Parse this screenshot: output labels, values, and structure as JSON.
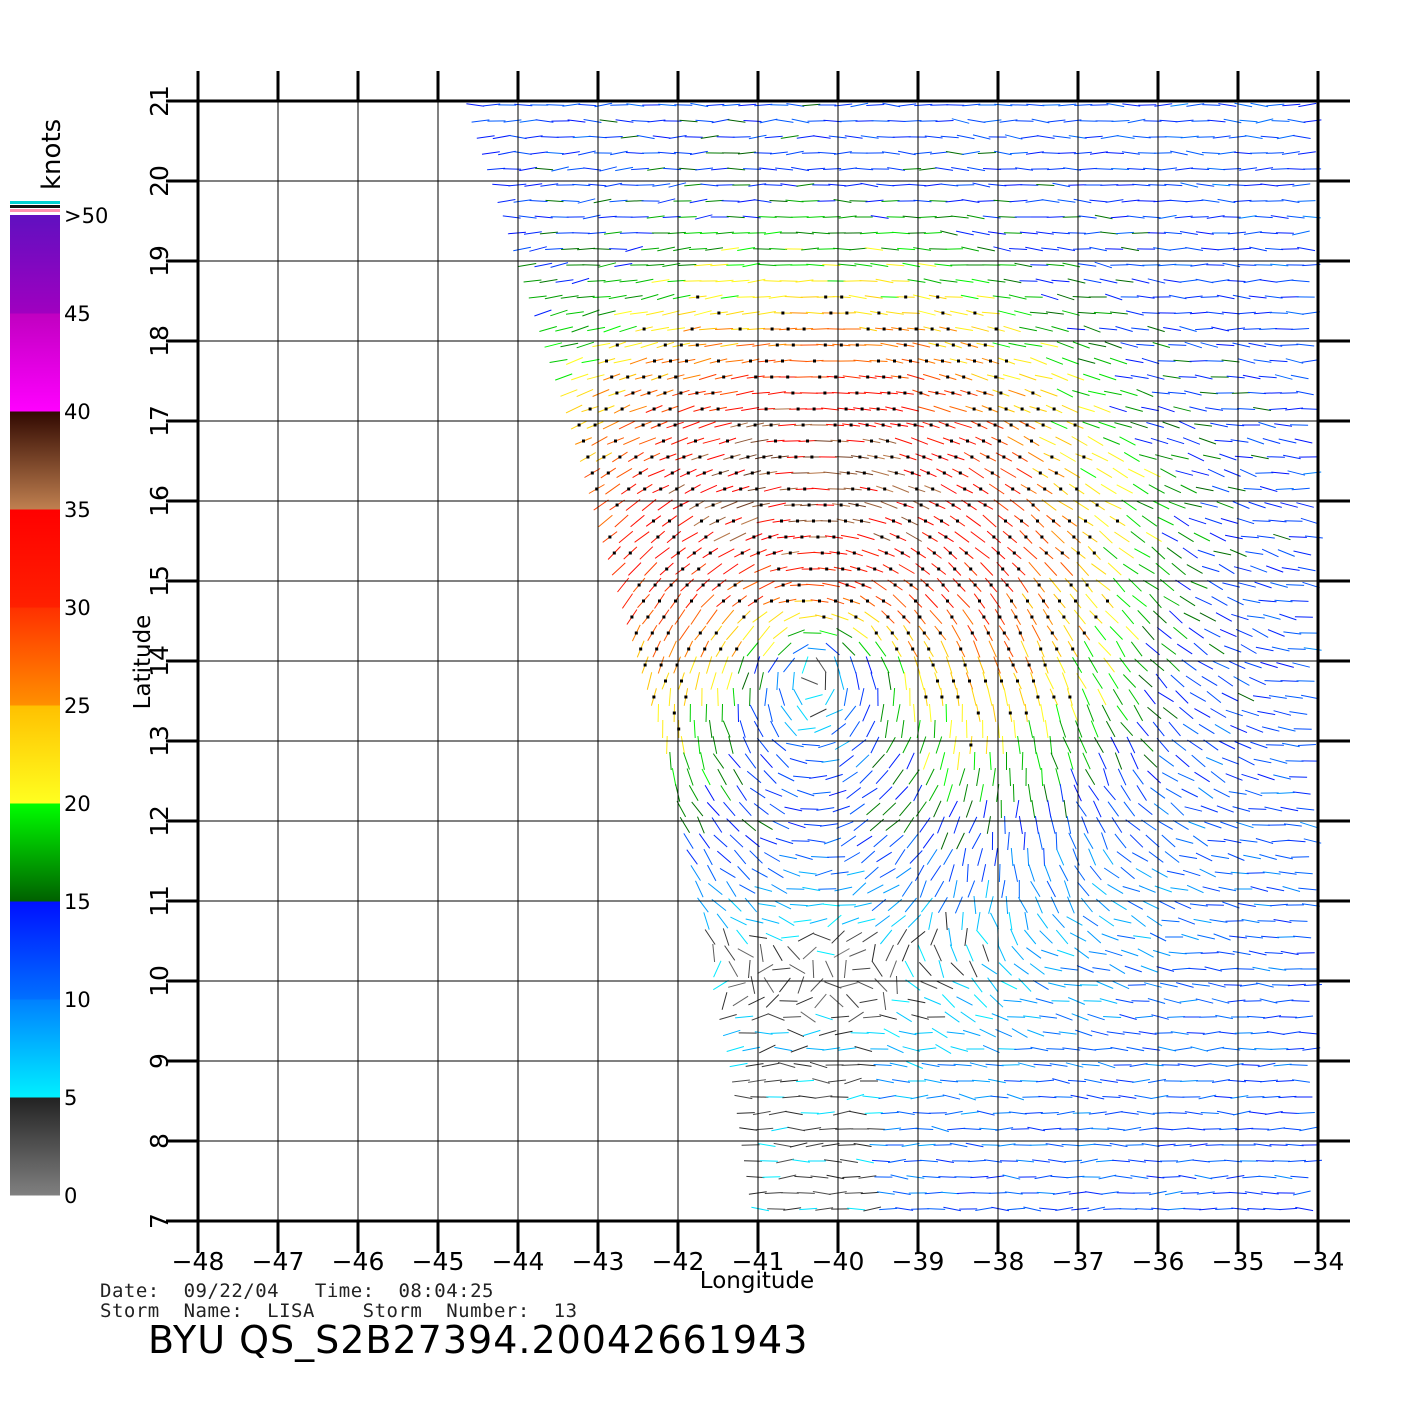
{
  "colorbar": {
    "title": "knots",
    "segments": [
      {
        "from": 0,
        "to": 5,
        "colors": [
          "#808080",
          "#222222"
        ]
      },
      {
        "from": 5,
        "to": 10,
        "colors": [
          "#00f0ff",
          "#0080ff"
        ]
      },
      {
        "from": 10,
        "to": 15,
        "colors": [
          "#0070ff",
          "#0010ff"
        ]
      },
      {
        "from": 15,
        "to": 20,
        "colors": [
          "#006000",
          "#00ff00"
        ]
      },
      {
        "from": 20,
        "to": 25,
        "colors": [
          "#ffff20",
          "#ffc000"
        ]
      },
      {
        "from": 25,
        "to": 30,
        "colors": [
          "#ff9000",
          "#ff3000"
        ]
      },
      {
        "from": 30,
        "to": 35,
        "colors": [
          "#ff2000",
          "#ff0000"
        ]
      },
      {
        "from": 35,
        "to": 40,
        "colors": [
          "#c08050",
          "#300800"
        ]
      },
      {
        "from": 40,
        "to": 45,
        "colors": [
          "#ff00ff",
          "#c000c0"
        ]
      },
      {
        "from": 45,
        "to": 50,
        "colors": [
          "#a000c0",
          "#6010c0"
        ]
      }
    ],
    "tick_labels": [
      {
        "value": 0,
        "label": "0"
      },
      {
        "value": 5,
        "label": "5"
      },
      {
        "value": 10,
        "label": "10"
      },
      {
        "value": 15,
        "label": "15"
      },
      {
        "value": 20,
        "label": "20"
      },
      {
        "value": 25,
        "label": "25"
      },
      {
        "value": 30,
        "label": "30"
      },
      {
        "value": 35,
        "label": "35"
      },
      {
        "value": 40,
        "label": "40"
      },
      {
        "value": 45,
        "label": "45"
      },
      {
        "value": 50,
        "label": ">50"
      }
    ],
    "cap_colors": [
      "#00d0d0",
      "#101010",
      "#ff90b0"
    ]
  },
  "map": {
    "xlabel": "Longitude",
    "ylabel": "Latitude",
    "lon_range": [
      -48,
      -34
    ],
    "lat_range": [
      7,
      21
    ],
    "lon_ticks": [
      "-48",
      "-47",
      "-46",
      "-45",
      "-44",
      "-43",
      "-42",
      "-41",
      "-40",
      "-39",
      "-38",
      "-37",
      "-36",
      "-35",
      "-34"
    ],
    "lat_ticks": [
      "7",
      "8",
      "9",
      "10",
      "11",
      "12",
      "13",
      "14",
      "15",
      "16",
      "17",
      "18",
      "19",
      "20",
      "21"
    ],
    "grid": true,
    "swath": {
      "left_edge": [
        [
          -44.6,
          21
        ],
        [
          -43.3,
          17
        ],
        [
          -42.2,
          13
        ],
        [
          -41.3,
          9
        ],
        [
          -41.0,
          7
        ]
      ],
      "right_lon": -34
    },
    "storm_center": {
      "lon": -40.3,
      "lat": 14.2
    },
    "rain_flag_color": "#000000",
    "line_color": "#000000",
    "grid_color": "#000000"
  },
  "footer": {
    "line1": "Date:  09/22/04   Time:  08:04:25",
    "line2": "Storm  Name:  LISA    Storm  Number:  13",
    "title": "BYU  QS_S2B27394.20042661943"
  }
}
